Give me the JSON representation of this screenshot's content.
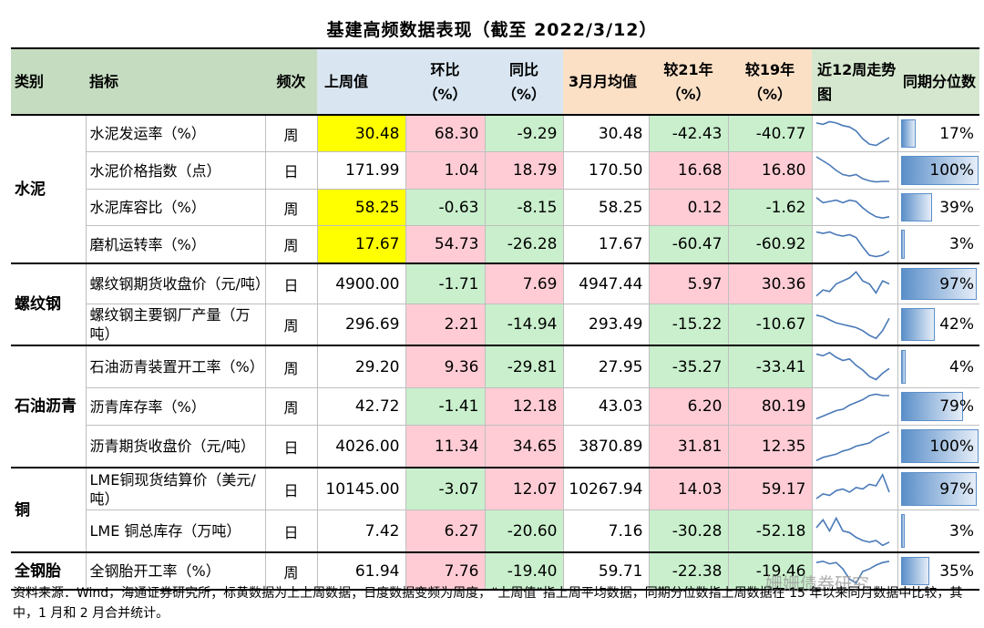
{
  "title": "基建高频数据表现（截至 2022/3/12）",
  "headers": {
    "category": "类别",
    "indicator": "指标",
    "frequency": "频次",
    "last_week": "上周值",
    "wow": "环比（%）",
    "yoy": "同比（%）",
    "march_avg": "3月月均值",
    "vs21": "较21年（%）",
    "vs19": "较19年（%）",
    "trend": "近12周走势图",
    "percentile": "同期分位数"
  },
  "groups": [
    {
      "category": "水泥",
      "rows": [
        {
          "indicator": "水泥发运率（%）",
          "freq": "周",
          "last_week": "30.48",
          "wow": "68.30",
          "yoy": "-9.29",
          "march_avg": "30.48",
          "vs21": "-42.43",
          "vs19": "-40.77",
          "pct": "17%",
          "pct_value": 0.17,
          "spark": [
            0.9,
            0.85,
            0.95,
            0.9,
            0.8,
            0.75,
            0.6,
            0.3,
            0.1,
            0.05,
            0.2,
            0.35
          ]
        },
        {
          "indicator": "水泥价格指数（点）",
          "freq": "日",
          "last_week": "171.99",
          "wow": "1.04",
          "yoy": "18.79",
          "march_avg": "170.50",
          "vs21": "16.68",
          "vs19": "16.80",
          "pct": "100%",
          "pct_value": 1.0,
          "spark": [
            1.0,
            0.85,
            0.7,
            0.5,
            0.35,
            0.3,
            0.35,
            0.2,
            0.12,
            0.08,
            0.1,
            0.1
          ]
        },
        {
          "indicator": "水泥库容比（%）",
          "freq": "周",
          "last_week": "58.25",
          "wow": "-0.63",
          "yoy": "-8.15",
          "march_avg": "58.25",
          "vs21": "0.12",
          "vs19": "-1.62",
          "pct": "39%",
          "pct_value": 0.39,
          "spark": [
            0.9,
            0.7,
            0.75,
            0.8,
            0.7,
            0.8,
            0.75,
            0.5,
            0.3,
            0.15,
            0.1,
            0.15
          ]
        },
        {
          "indicator": "磨机运转率（%）",
          "freq": "周",
          "last_week": "17.67",
          "wow": "54.73",
          "yoy": "-26.28",
          "march_avg": "17.67",
          "vs21": "-60.47",
          "vs19": "-60.92",
          "pct": "3%",
          "pct_value": 0.03,
          "spark": [
            0.95,
            0.9,
            0.95,
            0.85,
            0.8,
            0.85,
            0.75,
            0.4,
            0.1,
            0.05,
            0.1,
            0.25
          ]
        }
      ]
    },
    {
      "category": "螺纹钢",
      "rows": [
        {
          "indicator": "螺纹钢期货收盘价（元/吨）",
          "freq": "日",
          "last_week": "4900.00",
          "wow": "-1.71",
          "yoy": "7.69",
          "march_avg": "4947.44",
          "vs21": "5.97",
          "vs19": "30.36",
          "pct": "97%",
          "pct_value": 0.97,
          "spark": [
            0.1,
            0.3,
            0.25,
            0.5,
            0.6,
            0.7,
            0.9,
            0.6,
            0.5,
            0.2,
            0.6,
            0.5
          ]
        },
        {
          "indicator": "螺纹钢主要钢厂产量（万吨）",
          "freq": "周",
          "last_week": "296.69",
          "wow": "2.21",
          "yoy": "-14.94",
          "march_avg": "293.49",
          "vs21": "-15.22",
          "vs19": "-10.67",
          "pct": "42%",
          "pct_value": 0.42,
          "spark": [
            0.8,
            0.75,
            0.65,
            0.55,
            0.5,
            0.45,
            0.4,
            0.3,
            0.15,
            0.05,
            0.3,
            0.7
          ]
        }
      ]
    },
    {
      "category": "石油沥青",
      "rows": [
        {
          "indicator": "石油沥青装置开工率（%）",
          "freq": "周",
          "last_week": "29.20",
          "wow": "9.36",
          "yoy": "-29.81",
          "march_avg": "27.95",
          "vs21": "-35.27",
          "vs19": "-33.41",
          "pct": "4%",
          "pct_value": 0.04,
          "spark": [
            0.9,
            0.85,
            0.95,
            0.8,
            0.7,
            0.75,
            0.55,
            0.4,
            0.2,
            0.1,
            0.3,
            0.45
          ]
        },
        {
          "indicator": "沥青库存率（%）",
          "freq": "周",
          "last_week": "42.72",
          "wow": "-1.41",
          "yoy": "12.18",
          "march_avg": "43.03",
          "vs21": "6.20",
          "vs19": "80.19",
          "pct": "79%",
          "pct_value": 0.79,
          "spark": [
            0.05,
            0.15,
            0.25,
            0.35,
            0.4,
            0.55,
            0.65,
            0.75,
            0.9,
            0.95,
            0.9,
            0.9
          ]
        },
        {
          "indicator": "沥青期货收盘价（元/吨）",
          "freq": "日",
          "last_week": "4026.00",
          "wow": "11.34",
          "yoy": "34.65",
          "march_avg": "3870.89",
          "vs21": "31.81",
          "vs19": "12.35",
          "pct": "100%",
          "pct_value": 1.0,
          "spark": [
            0.05,
            0.15,
            0.2,
            0.25,
            0.35,
            0.4,
            0.5,
            0.55,
            0.6,
            0.75,
            0.85,
            0.95
          ]
        }
      ]
    },
    {
      "category": "铜",
      "rows": [
        {
          "indicator": "LME铜现货结算价（美元/吨）",
          "freq": "日",
          "last_week": "10145.00",
          "wow": "-3.07",
          "yoy": "12.07",
          "march_avg": "10267.94",
          "vs21": "14.03",
          "vs19": "59.17",
          "pct": "97%",
          "pct_value": 0.97,
          "spark": [
            0.2,
            0.35,
            0.3,
            0.45,
            0.5,
            0.4,
            0.55,
            0.5,
            0.65,
            0.6,
            0.95,
            0.4
          ]
        },
        {
          "indicator": "LME 铜总库存（万吨）",
          "freq": "日",
          "last_week": "7.42",
          "wow": "6.27",
          "yoy": "-20.60",
          "march_avg": "7.16",
          "vs21": "-30.28",
          "vs19": "-52.18",
          "pct": "3%",
          "pct_value": 0.03,
          "spark": [
            0.6,
            0.85,
            0.5,
            0.9,
            0.5,
            0.45,
            0.3,
            0.2,
            0.15,
            0.2,
            0.05,
            0.15
          ]
        }
      ]
    },
    {
      "category": "全钢胎",
      "rows": [
        {
          "indicator": "全钢胎开工率（%）",
          "freq": "周",
          "last_week": "61.94",
          "wow": "7.76",
          "yoy": "-19.40",
          "march_avg": "59.71",
          "vs21": "-22.38",
          "vs19": "-19.46",
          "pct": "35%",
          "pct_value": 0.35,
          "spark": [
            0.85,
            0.9,
            0.8,
            0.85,
            0.6,
            0.2,
            0.05,
            0.5,
            0.6,
            0.75,
            0.85,
            0.9
          ]
        }
      ]
    }
  ],
  "footnote": "资料来源：Wind，海通证券研究所；标黄数据为上上周数据；日度数据变频为周度，“上周值”指上周平均数据，同期分位数指上周数据在 15 年以来同月数据中比较，其中，1 月和 2 月合并统计。",
  "watermark": "姗姗债券研究"
}
